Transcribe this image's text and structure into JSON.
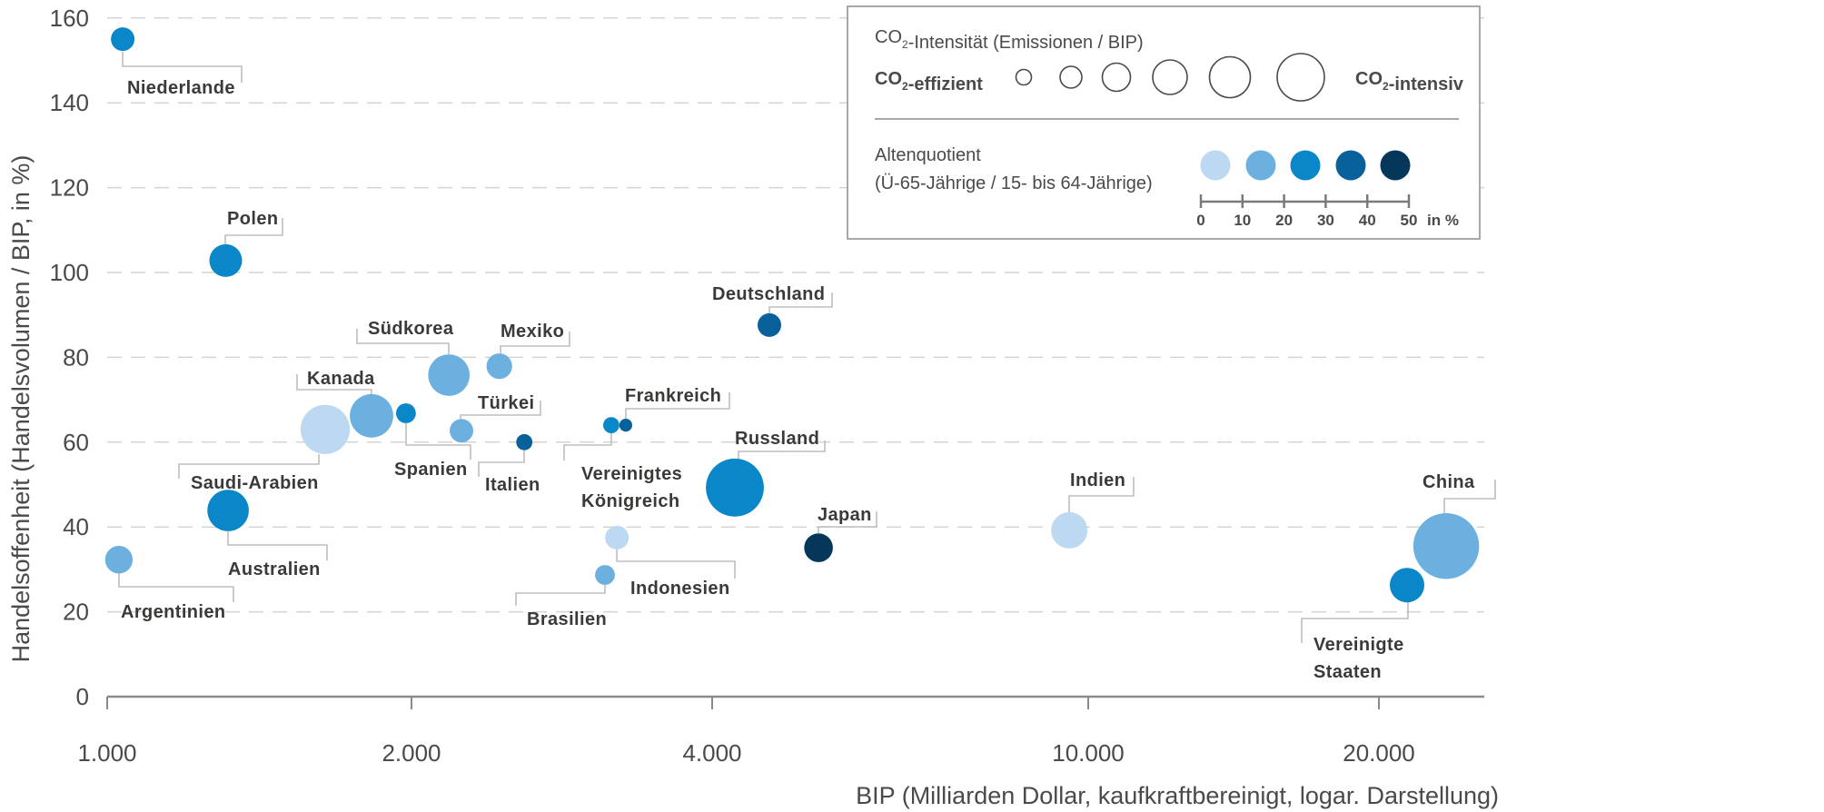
{
  "chart_data": {
    "type": "scatter",
    "subtype": "bubble",
    "title": "",
    "xlabel": "BIP (Milliarden Dollar, kaufkraftbereinigt, logar. Darstellung)",
    "ylabel": "Handelsoffenheit (Handelsvolumen / BIP, in %)",
    "x_scale": "log",
    "xlim": [
      1000,
      25500
    ],
    "ylim": [
      0,
      160
    ],
    "x_ticks": [
      1000,
      2000,
      4000,
      10000,
      20000
    ],
    "x_tick_labels": [
      "1.000",
      "2.000",
      "4.000",
      "10.000",
      "20.000"
    ],
    "y_ticks": [
      0,
      20,
      40,
      60,
      80,
      100,
      120,
      140,
      160
    ],
    "y_tick_labels": [
      "0",
      "20",
      "40",
      "60",
      "80",
      "100",
      "120",
      "140",
      "160"
    ],
    "grid": "horizontal-dashed",
    "legend_position": "top-right",
    "size_legend": {
      "title": "CO₂-Intensität (Emissionen / BIP)",
      "low_label": "CO₂-effizient",
      "high_label": "CO₂-intensiv",
      "steps": [
        1,
        2,
        3,
        4,
        5,
        6
      ]
    },
    "color_legend": {
      "title_line1": "Altenquotient",
      "title_line2": "(Ü-65-Jährige / 15- bis 64-Jährige)",
      "bins": [
        {
          "range": [
            0,
            10
          ],
          "color": "#bcd9f1"
        },
        {
          "range": [
            10,
            20
          ],
          "color": "#6cb0df"
        },
        {
          "range": [
            20,
            30
          ],
          "color": "#0a87c9"
        },
        {
          "range": [
            30,
            40
          ],
          "color": "#08619a"
        },
        {
          "range": [
            40,
            50
          ],
          "color": "#04375a"
        }
      ],
      "scale_ticks": [
        "0",
        "10",
        "20",
        "30",
        "40",
        "50"
      ],
      "unit": "in %"
    },
    "points": [
      {
        "name": "Niederlande",
        "label_lines": [
          "Niederlande"
        ],
        "gdp": 1036,
        "trade_openness": 155,
        "co2_index": 2.3,
        "old_age_bin": 2
      },
      {
        "name": "Polen",
        "label_lines": [
          "Polen"
        ],
        "gdp": 1310,
        "trade_openness": 102.8,
        "co2_index": 3.7,
        "old_age_bin": 2
      },
      {
        "name": "Argentinien",
        "label_lines": [
          "Argentinien"
        ],
        "gdp": 1027,
        "trade_openness": 32.3,
        "co2_index": 2.9,
        "old_age_bin": 1
      },
      {
        "name": "Australien",
        "label_lines": [
          "Australien"
        ],
        "gdp": 1317,
        "trade_openness": 43.9,
        "co2_index": 5.1,
        "old_age_bin": 2
      },
      {
        "name": "Saudi-Arabien",
        "label_lines": [
          "Saudi-Arabien"
        ],
        "gdp": 1643,
        "trade_openness": 63.0,
        "co2_index": 6.3,
        "old_age_bin": 0
      },
      {
        "name": "Kanada",
        "label_lines": [
          "Kanada"
        ],
        "gdp": 1826,
        "trade_openness": 66.2,
        "co2_index": 5.4,
        "old_age_bin": 1
      },
      {
        "name": "Spanien",
        "label_lines": [
          "Spanien"
        ],
        "gdp": 1975,
        "trade_openness": 66.8,
        "co2_index": 1.7,
        "old_age_bin": 2
      },
      {
        "name": "Südkorea",
        "label_lines": [
          "Südkorea"
        ],
        "gdp": 2180,
        "trade_openness": 75.8,
        "co2_index": 5.1,
        "old_age_bin": 1
      },
      {
        "name": "Türkei",
        "label_lines": [
          "Türkei"
        ],
        "gdp": 2244,
        "trade_openness": 62.7,
        "co2_index": 2.3,
        "old_age_bin": 1
      },
      {
        "name": "Mexiko",
        "label_lines": [
          "Mexiko"
        ],
        "gdp": 2449,
        "trade_openness": 77.9,
        "co2_index": 2.6,
        "old_age_bin": 1
      },
      {
        "name": "Italien",
        "label_lines": [
          "Italien"
        ],
        "gdp": 2594,
        "trade_openness": 60.0,
        "co2_index": 1.1,
        "old_age_bin": 3
      },
      {
        "name": "Vereinigtes Königreich",
        "label_lines": [
          "Vereinigtes",
          "Königreich"
        ],
        "gdp": 3170,
        "trade_openness": 64.0,
        "co2_index": 1.1,
        "old_age_bin": 2
      },
      {
        "name": "Frankreich",
        "label_lines": [
          "Frankreich"
        ],
        "gdp": 3278,
        "trade_openness": 64.0,
        "co2_index": 0.6,
        "old_age_bin": 3
      },
      {
        "name": "Brasilien",
        "label_lines": [
          "Brasilien"
        ],
        "gdp": 3124,
        "trade_openness": 28.7,
        "co2_index": 1.7,
        "old_age_bin": 1
      },
      {
        "name": "Indonesien",
        "label_lines": [
          "Indonesien"
        ],
        "gdp": 3212,
        "trade_openness": 37.5,
        "co2_index": 2.3,
        "old_age_bin": 0
      },
      {
        "name": "Russland",
        "label_lines": [
          "Russland"
        ],
        "gdp": 4228,
        "trade_openness": 49.3,
        "co2_index": 7.7,
        "old_age_bin": 2
      },
      {
        "name": "Deutschland",
        "label_lines": [
          "Deutschland"
        ],
        "gdp": 4598,
        "trade_openness": 87.6,
        "co2_index": 2.3,
        "old_age_bin": 3
      },
      {
        "name": "Japan",
        "label_lines": [
          "Japan"
        ],
        "gdp": 5183,
        "trade_openness": 35.1,
        "co2_index": 3.1,
        "old_age_bin": 4
      },
      {
        "name": "Indien",
        "label_lines": [
          "Indien"
        ],
        "gdp": 9550,
        "trade_openness": 39.2,
        "co2_index": 4.3,
        "old_age_bin": 0
      },
      {
        "name": "Vereinigte Staaten",
        "label_lines": [
          "Vereinigte",
          "Staaten"
        ],
        "gdp": 21390,
        "trade_openness": 26.3,
        "co2_index": 4.0,
        "old_age_bin": 2
      },
      {
        "name": "China",
        "label_lines": [
          "China"
        ],
        "gdp": 23480,
        "trade_openness": 35.5,
        "co2_index": 8.9,
        "old_age_bin": 1
      }
    ]
  }
}
